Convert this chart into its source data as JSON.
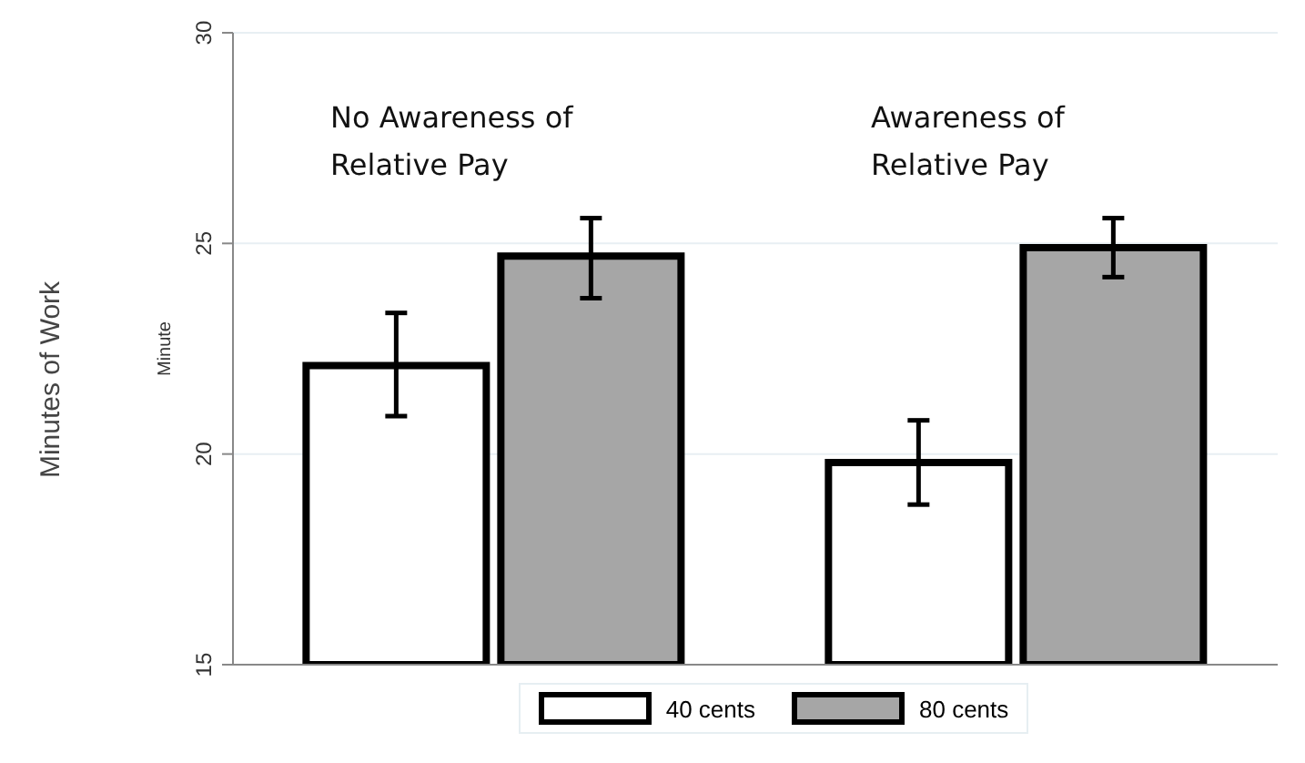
{
  "chart_data": {
    "type": "bar",
    "categories": [
      null,
      null
    ],
    "series": [
      {
        "name": "40 cents",
        "color": "#ffffff",
        "values": [
          22.1,
          19.8
        ],
        "errors": [
          [
            20.9,
            23.35
          ],
          [
            18.8,
            20.8
          ]
        ]
      },
      {
        "name": "80 cents",
        "color": "#a6a6a6",
        "values": [
          24.7,
          24.9
        ],
        "errors": [
          [
            23.7,
            25.6
          ],
          [
            24.2,
            25.6
          ]
        ]
      }
    ],
    "ylabel": "Minute",
    "ylim": [
      15,
      30
    ],
    "yticks": [
      15,
      20,
      25,
      30
    ],
    "grid": "y",
    "legend": "bottom",
    "annotations": [
      "No Awareness of Relative Pay",
      "Awareness of Relative Pay",
      "Minutes of Work"
    ]
  }
}
